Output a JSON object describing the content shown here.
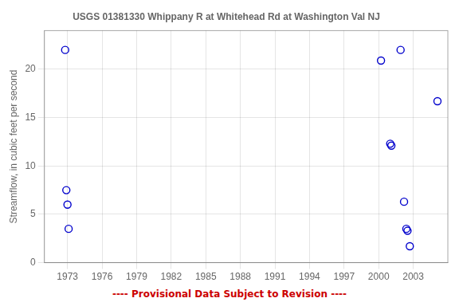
{
  "chart_data": {
    "type": "scatter",
    "title": "USGS 01381330 Whippany R at Whitehead Rd at Washington Val NJ",
    "ylabel": "Streamflow, in cubic feet per second",
    "annotations": [
      {
        "text": "---- Provisional Data Subject to Revision ----",
        "color": "#cc0000"
      }
    ],
    "x": [
      1972.8,
      1972.9,
      1973.0,
      1973.1,
      2000.2,
      2001.0,
      2001.1,
      2001.9,
      2002.2,
      2002.4,
      2002.5,
      2002.7,
      2005.1
    ],
    "values": [
      22.0,
      7.5,
      6.0,
      3.5,
      20.9,
      12.3,
      12.1,
      22.0,
      6.3,
      3.5,
      3.3,
      1.7,
      16.7
    ],
    "color": "#0000cc",
    "marker": "circle",
    "xlim": [
      1971,
      2006
    ],
    "ylim": [
      0,
      24
    ],
    "xticks": [
      1973,
      1976,
      1979,
      1982,
      1985,
      1988,
      1991,
      1994,
      1997,
      2000,
      2003
    ],
    "yticks": [
      0,
      5,
      10,
      15,
      20
    ],
    "grid": true
  }
}
